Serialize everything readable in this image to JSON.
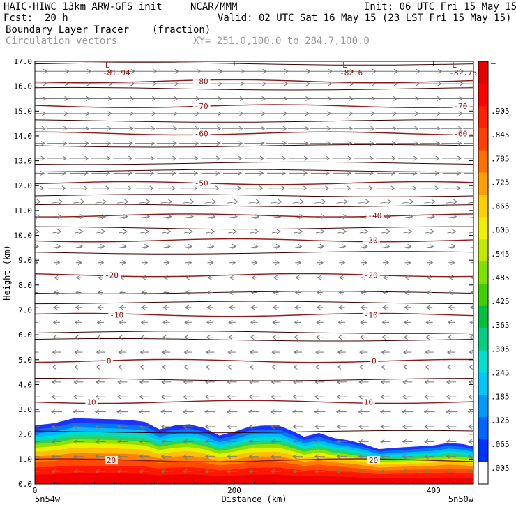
{
  "header": {
    "model": "HAIC-HIWC 13km ARW-GFS init",
    "org": "NCAR/MMM",
    "init": "Init: 06 UTC Fri 15 May 15",
    "fcst_label": "Fcst:",
    "fcst_value": "20 h",
    "valid": "Valid: 02 UTC Sat 16 May 15 (23 LST Fri 15 May 15)",
    "field": "Boundary Layer Tracer",
    "field_units": "(fraction)",
    "vectors": "Circulation vectors",
    "xy": "XY= 251.0,100.0 to 284.7,100.0"
  },
  "chart_data": {
    "type": "heatmap",
    "title": "Boundary Layer Tracer",
    "xlabel": "Distance (km)",
    "ylabel": "Height (km)",
    "xlim": [
      0,
      440
    ],
    "ylim": [
      0,
      17
    ],
    "x_ticks": [
      0,
      200,
      400
    ],
    "y_ticks": [
      "0.0",
      "1.0",
      "2.0",
      "3.0",
      "4.0",
      "5.0",
      "6.0",
      "7.0",
      "8.0",
      "9.0",
      "10.0",
      "11.0",
      "12.0",
      "13.0",
      "14.0",
      "15.0",
      "16.0",
      "17.0"
    ],
    "x_end_labels": {
      "left": "5n54w",
      "right": "5n50w"
    },
    "colorbar": {
      "labels": [
        ".005",
        ".065",
        ".125",
        ".185",
        ".245",
        ".305",
        ".365",
        ".425",
        ".485",
        ".545",
        ".605",
        ".665",
        ".725",
        ".785",
        ".845",
        ".905"
      ],
      "top_label": "–",
      "colors": [
        "#ffffff",
        "#0033ff",
        "#0066ff",
        "#0099ff",
        "#00c8ff",
        "#00e0d0",
        "#00d080",
        "#00c040",
        "#40d000",
        "#80e000",
        "#c0e800",
        "#f0f000",
        "#ffd000",
        "#ffa000",
        "#ff7000",
        "#ff4000",
        "#ff2000",
        "#ff0000",
        "#e80000"
      ]
    },
    "tracer_top_km": [
      [
        0,
        2.35
      ],
      [
        20,
        2.45
      ],
      [
        40,
        2.65
      ],
      [
        60,
        2.62
      ],
      [
        80,
        2.6
      ],
      [
        100,
        2.55
      ],
      [
        110,
        2.5
      ],
      [
        125,
        2.2
      ],
      [
        140,
        2.35
      ],
      [
        155,
        2.4
      ],
      [
        170,
        2.25
      ],
      [
        185,
        1.95
      ],
      [
        200,
        2.1
      ],
      [
        215,
        2.3
      ],
      [
        230,
        2.35
      ],
      [
        245,
        2.35
      ],
      [
        260,
        2.1
      ],
      [
        270,
        1.9
      ],
      [
        285,
        2.05
      ],
      [
        300,
        1.85
      ],
      [
        315,
        1.75
      ],
      [
        330,
        1.6
      ],
      [
        345,
        1.4
      ],
      [
        360,
        1.45
      ],
      [
        380,
        1.5
      ],
      [
        400,
        1.55
      ],
      [
        415,
        1.65
      ],
      [
        430,
        1.6
      ],
      [
        440,
        1.5
      ]
    ],
    "isotherms": [
      {
        "label": "-80",
        "y": 16.2
      },
      {
        "label": "-70",
        "y": 15.2
      },
      {
        "label": "-60",
        "y": 14.1
      },
      {
        "label": "-50",
        "y": 12.1
      },
      {
        "label": "-40",
        "y": 10.8
      },
      {
        "label": "-30",
        "y": 9.8
      },
      {
        "label": "-20",
        "y": 8.4
      },
      {
        "label": "-10",
        "y": 6.8
      },
      {
        "label": "0",
        "y": 4.95
      },
      {
        "label": "10",
        "y": 3.3
      },
      {
        "label": "20",
        "y": 0.95
      }
    ],
    "theta_lines_km": [
      16.9,
      15.9,
      14.6,
      13.6,
      12.9,
      12.6,
      11.6,
      11.2,
      10.3,
      9.3,
      7.7,
      7.3,
      6.1,
      5.8,
      4.2,
      2.1
    ],
    "lows": [
      {
        "label": "L",
        "value": "-81.94",
        "x": 72
      },
      {
        "label": "L",
        "value": "-82.6",
        "x": 310
      },
      {
        "label": "L",
        "value": "-82.75",
        "x": 420
      }
    ],
    "vector_levels_km": [
      16.6,
      16.1,
      15.5,
      14.9,
      14.3,
      13.7,
      13.1,
      12.5,
      11.9,
      11.3,
      10.7,
      10.1,
      9.5,
      8.9,
      8.3,
      7.7,
      7.1,
      6.5,
      5.9,
      5.3,
      4.7,
      4.1,
      3.5,
      2.9,
      2.3,
      1.7,
      1.1,
      0.5
    ],
    "vector_columns_km": [
      0,
      22,
      44,
      66,
      88,
      110,
      132,
      154,
      176,
      198,
      220,
      242,
      264,
      286,
      308,
      330,
      352,
      374,
      396,
      418,
      440
    ],
    "grid": false,
    "legend": "colorbar-right"
  }
}
